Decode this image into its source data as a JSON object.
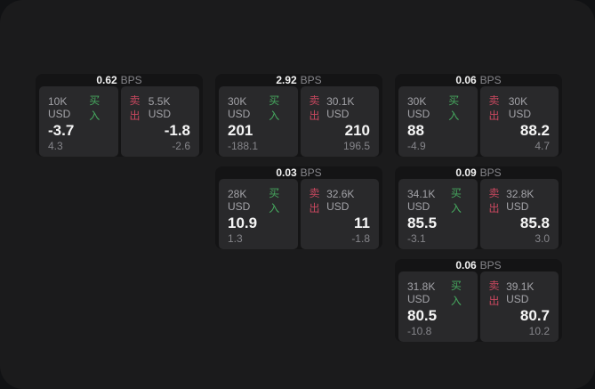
{
  "colors": {
    "buy_green": "#46a95f",
    "sell_red": "#c9485f"
  },
  "cards": [
    {
      "col": 1,
      "row": 1,
      "bps_value": "0.62",
      "bps_unit": "BPS",
      "buy_amount": "10K USD",
      "buy_label": "买入",
      "buy_price": "-3.7",
      "buy_delta": "4.3",
      "sell_label": "卖出",
      "sell_amount": "5.5K USD",
      "sell_price": "-1.8",
      "sell_delta": "-2.6"
    },
    {
      "col": 2,
      "row": 1,
      "bps_value": "2.92",
      "bps_unit": "BPS",
      "buy_amount": "30K USD",
      "buy_label": "买入",
      "buy_price": "201",
      "buy_delta": "-188.1",
      "sell_label": "卖出",
      "sell_amount": "30.1K USD",
      "sell_price": "210",
      "sell_delta": "196.5"
    },
    {
      "col": 3,
      "row": 1,
      "bps_value": "0.06",
      "bps_unit": "BPS",
      "buy_amount": "30K USD",
      "buy_label": "买入",
      "buy_price": "88",
      "buy_delta": "-4.9",
      "sell_label": "卖出",
      "sell_amount": "30K USD",
      "sell_price": "88.2",
      "sell_delta": "4.7"
    },
    {
      "col": 2,
      "row": 2,
      "bps_value": "0.03",
      "bps_unit": "BPS",
      "buy_amount": "28K USD",
      "buy_label": "买入",
      "buy_price": "10.9",
      "buy_delta": "1.3",
      "sell_label": "卖出",
      "sell_amount": "32.6K USD",
      "sell_price": "11",
      "sell_delta": "-1.8"
    },
    {
      "col": 3,
      "row": 2,
      "bps_value": "0.09",
      "bps_unit": "BPS",
      "buy_amount": "34.1K USD",
      "buy_label": "买入",
      "buy_price": "85.5",
      "buy_delta": "-3.1",
      "sell_label": "卖出",
      "sell_amount": "32.8K USD",
      "sell_price": "85.8",
      "sell_delta": "3.0"
    },
    {
      "col": 3,
      "row": 3,
      "bps_value": "0.06",
      "bps_unit": "BPS",
      "buy_amount": "31.8K USD",
      "buy_label": "买入",
      "buy_price": "80.5",
      "buy_delta": "-10.8",
      "sell_label": "卖出",
      "sell_amount": "39.1K USD",
      "sell_price": "80.7",
      "sell_delta": "10.2"
    }
  ]
}
